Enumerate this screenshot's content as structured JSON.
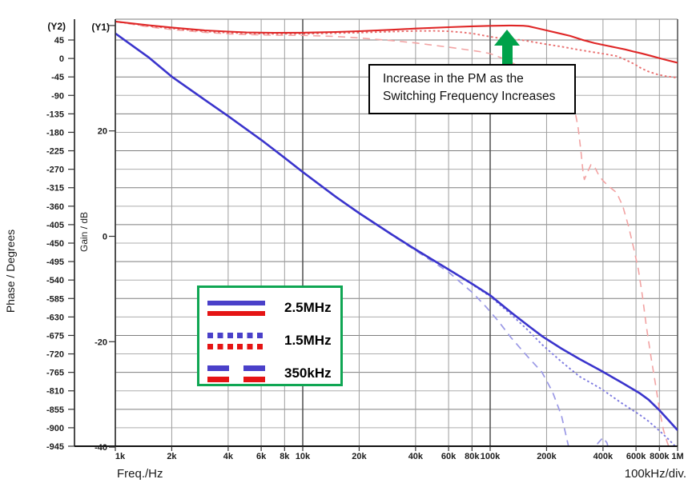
{
  "labels": {
    "y2_corner": "(Y2)",
    "y1_corner": "(Y1)",
    "phase_axis_title": "Phase / Degrees",
    "gain_axis_title": "Gain / dB",
    "freq_axis_title": "Freq./Hz",
    "div_note": "100kHz/div."
  },
  "annotation": {
    "line1": "Increase in the PM as the",
    "line2": "Switching Frequency Increases",
    "arrow_icon": "green-up-block-arrow"
  },
  "legend": {
    "rows": [
      {
        "label": "2.5MHz",
        "style": "solid"
      },
      {
        "label": "1.5MHz",
        "style": "dotted"
      },
      {
        "label": "350kHz",
        "style": "dashed"
      }
    ]
  },
  "colors": {
    "blue": "#3a34cc",
    "blue_dotted": "#7d7ae0",
    "blue_dashed": "#9b99e6",
    "red": "#df2626",
    "red_dotted": "#e97070",
    "red_dashed": "#f2a3a3",
    "legend_blue": "#4a40c9",
    "legend_red": "#e51414",
    "legend_border": "#0fa653",
    "arrow_green": "#00a24a",
    "grid_major": "#4f4f4f",
    "grid_minor": "#9d9d9d",
    "grid_h_dark": "#7e7e7e",
    "grid_h_light": "#adadad",
    "axis_black": "#111111",
    "tick_text": "#1c1c1c"
  },
  "chart_data": {
    "type": "line",
    "title": "",
    "grid": true,
    "legend_position": "lower-left-inside",
    "x_axis": {
      "label": "Freq./Hz",
      "scale": "log",
      "min": 1000,
      "max": 1000000,
      "unit_note": "100kHz/div.",
      "ticks": [
        {
          "f": 1000,
          "label": "1k"
        },
        {
          "f": 2000,
          "label": "2k"
        },
        {
          "f": 4000,
          "label": "4k"
        },
        {
          "f": 6000,
          "label": "6k"
        },
        {
          "f": 8000,
          "label": "8k"
        },
        {
          "f": 10000,
          "label": "10k"
        },
        {
          "f": 20000,
          "label": "20k"
        },
        {
          "f": 40000,
          "label": "40k"
        },
        {
          "f": 60000,
          "label": "60k"
        },
        {
          "f": 80000,
          "label": "80k"
        },
        {
          "f": 100000,
          "label": "100k"
        },
        {
          "f": 200000,
          "label": "200k"
        },
        {
          "f": 400000,
          "label": "400k"
        },
        {
          "f": 600000,
          "label": "600k"
        },
        {
          "f": 800000,
          "label": "800k"
        },
        {
          "f": 1000000,
          "label": "1M"
        }
      ],
      "gridline_multipliers": [
        1,
        2,
        4,
        6,
        8
      ]
    },
    "phase_axis": {
      "name": "(Y2)",
      "label": "Phase / Degrees",
      "min": -945,
      "max": 45,
      "tick_step": 45,
      "ticks": [
        45,
        0,
        -45,
        -90,
        -135,
        -180,
        -225,
        -270,
        -315,
        -360,
        -405,
        -450,
        -495,
        -540,
        -585,
        -630,
        -675,
        -720,
        -765,
        -810,
        -855,
        -900,
        -945
      ]
    },
    "gain_axis": {
      "name": "(Y1)",
      "label": "Gain / dB",
      "min": -40,
      "max": 40,
      "tick_step": 20,
      "ticks": [
        {
          "v": 40,
          "label": ""
        },
        {
          "v": 20,
          "label": "20"
        },
        {
          "v": 0,
          "label": "0"
        },
        {
          "v": -20,
          "label": "-20"
        },
        {
          "v": -40,
          "label": "-40"
        }
      ]
    },
    "series": [
      {
        "name": "phase-350kHz",
        "legend": "350kHz",
        "axis": "phase",
        "color": "red_dashed",
        "dash": "dashed",
        "width": 1.6,
        "points": [
          [
            1000,
            90
          ],
          [
            1500,
            77
          ],
          [
            2000,
            70.5
          ],
          [
            3000,
            63.5
          ],
          [
            4000,
            60
          ],
          [
            5000,
            58.2
          ],
          [
            7000,
            56.8
          ],
          [
            10000,
            56.3
          ],
          [
            15000,
            53.5
          ],
          [
            20000,
            50
          ],
          [
            30000,
            43.5
          ],
          [
            40000,
            37.8
          ],
          [
            60000,
            27.5
          ],
          [
            80000,
            19.5
          ],
          [
            90000,
            16
          ],
          [
            100000,
            11.9
          ],
          [
            123000,
            -3.7
          ],
          [
            150000,
            -25
          ],
          [
            180000,
            -48
          ],
          [
            210000,
            -72
          ],
          [
            240000,
            -97
          ],
          [
            265000,
            -115
          ],
          [
            284000,
            -130
          ],
          [
            295000,
            -170
          ],
          [
            305000,
            -225
          ],
          [
            313000,
            -278
          ],
          [
            318000,
            -295
          ],
          [
            330000,
            -278
          ],
          [
            345000,
            -259
          ],
          [
            360000,
            -263
          ],
          [
            380000,
            -285
          ],
          [
            400000,
            -298
          ],
          [
            430000,
            -312
          ],
          [
            473000,
            -327
          ],
          [
            510000,
            -360
          ],
          [
            548000,
            -410
          ],
          [
            585000,
            -465
          ],
          [
            618000,
            -515
          ],
          [
            650000,
            -580
          ],
          [
            680000,
            -650
          ],
          [
            723000,
            -730
          ],
          [
            760000,
            -790
          ],
          [
            800000,
            -855
          ],
          [
            840000,
            -905
          ],
          [
            880000,
            -935
          ],
          [
            920000,
            -958
          ]
        ]
      },
      {
        "name": "gain-350kHz",
        "legend": "350kHz",
        "axis": "gain",
        "color": "blue_dashed",
        "dash": "dashed",
        "width": 1.7,
        "points": [
          [
            1000,
            38.5
          ],
          [
            1500,
            34
          ],
          [
            2000,
            30.3
          ],
          [
            3000,
            25.9
          ],
          [
            4000,
            22.8
          ],
          [
            6000,
            18.3
          ],
          [
            8000,
            14.9
          ],
          [
            10000,
            12.2
          ],
          [
            15000,
            7.5
          ],
          [
            20000,
            4.4
          ],
          [
            30000,
            0.2
          ],
          [
            40000,
            -2.7
          ],
          [
            60000,
            -6.8
          ],
          [
            80000,
            -10.6
          ],
          [
            93000,
            -13
          ],
          [
            110000,
            -16
          ],
          [
            129000,
            -19.2
          ],
          [
            160000,
            -23
          ],
          [
            189000,
            -25.8
          ],
          [
            215000,
            -29.5
          ],
          [
            240000,
            -34
          ],
          [
            262000,
            -39.9
          ],
          [
            268000,
            -41.5
          ],
          [
            355000,
            -41.5
          ],
          [
            375000,
            -39.3
          ],
          [
            400000,
            -38.2
          ],
          [
            420000,
            -39.2
          ],
          [
            438000,
            -41.5
          ]
        ]
      },
      {
        "name": "phase-1.5MHz",
        "legend": "1.5MHz",
        "axis": "phase",
        "color": "red_dotted",
        "dash": "dotted",
        "width": 1.9,
        "points": [
          [
            1000,
            90
          ],
          [
            1500,
            79
          ],
          [
            2000,
            73
          ],
          [
            3000,
            66
          ],
          [
            4000,
            62.5
          ],
          [
            5000,
            61
          ],
          [
            7000,
            59.8
          ],
          [
            10000,
            60
          ],
          [
            15000,
            61.5
          ],
          [
            20000,
            63
          ],
          [
            30000,
            65.5
          ],
          [
            40000,
            67
          ],
          [
            50000,
            67.2
          ],
          [
            60000,
            66.3
          ],
          [
            70000,
            64
          ],
          [
            80000,
            61
          ],
          [
            100000,
            53
          ],
          [
            120000,
            47.5
          ],
          [
            147000,
            45
          ],
          [
            170000,
            40
          ],
          [
            200000,
            34.5
          ],
          [
            240000,
            28.8
          ],
          [
            290000,
            22
          ],
          [
            340000,
            16.5
          ],
          [
            390000,
            12.5
          ],
          [
            470000,
            6
          ],
          [
            520000,
            -2
          ],
          [
            590000,
            -14
          ],
          [
            640000,
            -24
          ],
          [
            700000,
            -32
          ],
          [
            780000,
            -39
          ],
          [
            860000,
            -43
          ],
          [
            1000000,
            -47
          ]
        ]
      },
      {
        "name": "gain-1.5MHz",
        "legend": "1.5MHz",
        "axis": "gain",
        "color": "blue_dotted",
        "dash": "dotted",
        "width": 1.9,
        "points": [
          [
            1000,
            38.5
          ],
          [
            1500,
            34
          ],
          [
            2000,
            30.3
          ],
          [
            3000,
            25.9
          ],
          [
            4000,
            22.8
          ],
          [
            6000,
            18.3
          ],
          [
            8000,
            14.9
          ],
          [
            10000,
            12.2
          ],
          [
            15000,
            7.5
          ],
          [
            20000,
            4.4
          ],
          [
            30000,
            0.3
          ],
          [
            40000,
            -2.5
          ],
          [
            60000,
            -6.3
          ],
          [
            80000,
            -9.1
          ],
          [
            100000,
            -11.4
          ],
          [
            130000,
            -14.9
          ],
          [
            160000,
            -17.9
          ],
          [
            190000,
            -20.6
          ],
          [
            240000,
            -23.8
          ],
          [
            300000,
            -26.6
          ],
          [
            390000,
            -28.9
          ],
          [
            500000,
            -31.6
          ],
          [
            630000,
            -33.9
          ],
          [
            700000,
            -35.1
          ],
          [
            800000,
            -36.9
          ],
          [
            900000,
            -38.6
          ],
          [
            1000000,
            -40.3
          ]
        ]
      },
      {
        "name": "phase-2.5MHz",
        "legend": "2.5MHz",
        "axis": "phase",
        "color": "red",
        "dash": "solid",
        "width": 2.1,
        "points": [
          [
            1000,
            90
          ],
          [
            1500,
            81
          ],
          [
            2000,
            75.5
          ],
          [
            3000,
            68.5
          ],
          [
            4000,
            65.5
          ],
          [
            5000,
            63.5
          ],
          [
            7000,
            62.5
          ],
          [
            10000,
            62.8
          ],
          [
            15000,
            64.5
          ],
          [
            20000,
            66.5
          ],
          [
            30000,
            70
          ],
          [
            40000,
            72.8
          ],
          [
            60000,
            76.2
          ],
          [
            80000,
            78.3
          ],
          [
            100000,
            79.5
          ],
          [
            130000,
            80.3
          ],
          [
            150000,
            79.8
          ],
          [
            160000,
            78.5
          ],
          [
            175000,
            74.5
          ],
          [
            200000,
            68.5
          ],
          [
            230000,
            62
          ],
          [
            267000,
            55
          ],
          [
            310000,
            45.5
          ],
          [
            360000,
            37.5
          ],
          [
            415000,
            31.5
          ],
          [
            470000,
            26.5
          ],
          [
            525000,
            22
          ],
          [
            580000,
            17
          ],
          [
            640000,
            12.5
          ],
          [
            720000,
            6.5
          ],
          [
            800000,
            0.5
          ],
          [
            900000,
            -5.5
          ],
          [
            1000000,
            -10.5
          ]
        ]
      },
      {
        "name": "gain-2.5MHz",
        "legend": "2.5MHz",
        "axis": "gain",
        "color": "blue",
        "dash": "solid",
        "width": 2.6,
        "points": [
          [
            1000,
            38.5
          ],
          [
            1500,
            34
          ],
          [
            2000,
            30.3
          ],
          [
            3000,
            25.9
          ],
          [
            4000,
            22.8
          ],
          [
            6000,
            18.3
          ],
          [
            8000,
            14.9
          ],
          [
            10000,
            12.2
          ],
          [
            15000,
            7.5
          ],
          [
            20000,
            4.4
          ],
          [
            30000,
            0.3
          ],
          [
            40000,
            -2.5
          ],
          [
            60000,
            -6.3
          ],
          [
            80000,
            -9
          ],
          [
            100000,
            -11.2
          ],
          [
            130000,
            -14.5
          ],
          [
            160000,
            -17
          ],
          [
            190000,
            -19
          ],
          [
            240000,
            -21.3
          ],
          [
            300000,
            -23.3
          ],
          [
            390000,
            -25.5
          ],
          [
            500000,
            -27.7
          ],
          [
            630000,
            -29.8
          ],
          [
            700000,
            -31
          ],
          [
            800000,
            -33
          ],
          [
            900000,
            -35
          ],
          [
            1000000,
            -36.8
          ]
        ]
      }
    ]
  }
}
